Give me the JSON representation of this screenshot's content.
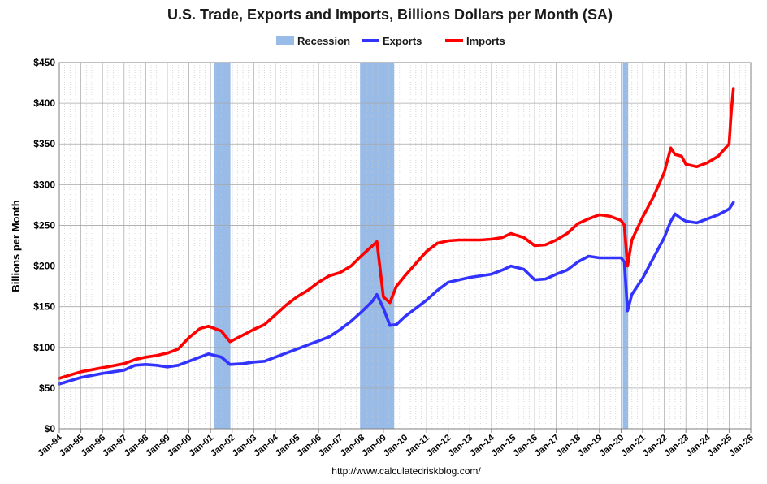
{
  "chart_data": {
    "type": "line",
    "title": "U.S. Trade, Exports and Imports, Billions Dollars per Month (SA)",
    "ylabel": "Billions per Month",
    "xlabel": "",
    "source_url": "http://www.calculatedriskblog.com/",
    "ylim": [
      0,
      450
    ],
    "xlim": [
      "1994-01",
      "2026-01"
    ],
    "grid": true,
    "legend_position": "top-center",
    "y_tick_labels": [
      "$0",
      "$50",
      "$100",
      "$150",
      "$200",
      "$250",
      "$300",
      "$350",
      "$400",
      "$450"
    ],
    "y_tick_values": [
      0,
      50,
      100,
      150,
      200,
      250,
      300,
      350,
      400,
      450
    ],
    "x_tick_labels": [
      "Jan-94",
      "Jan-95",
      "Jan-96",
      "Jan-97",
      "Jan-98",
      "Jan-99",
      "Jan-00",
      "Jan-01",
      "Jan-02",
      "Jan-03",
      "Jan-04",
      "Jan-05",
      "Jan-06",
      "Jan-07",
      "Jan-08",
      "Jan-09",
      "Jan-10",
      "Jan-11",
      "Jan-12",
      "Jan-13",
      "Jan-14",
      "Jan-15",
      "Jan-16",
      "Jan-17",
      "Jan-18",
      "Jan-19",
      "Jan-20",
      "Jan-21",
      "Jan-22",
      "Jan-23",
      "Jan-24",
      "Jan-25",
      "Jan-26"
    ],
    "x_tick_values": [
      1994,
      1995,
      1996,
      1997,
      1998,
      1999,
      2000,
      2001,
      2002,
      2003,
      2004,
      2005,
      2006,
      2007,
      2008,
      2009,
      2010,
      2011,
      2012,
      2013,
      2014,
      2015,
      2016,
      2017,
      2018,
      2019,
      2020,
      2021,
      2022,
      2023,
      2024,
      2025,
      2026
    ],
    "legend": [
      {
        "name": "Recession",
        "color": "#99bbe8",
        "kind": "band"
      },
      {
        "name": "Exports",
        "color": "#3333ff",
        "kind": "line"
      },
      {
        "name": "Imports",
        "color": "#ff0000",
        "kind": "line"
      }
    ],
    "recessions": [
      {
        "start": "2001-03",
        "end": "2001-11",
        "start_num": 2001.17,
        "end_num": 2001.92
      },
      {
        "start": "2007-12",
        "end": "2009-06",
        "start_num": 2007.92,
        "end_num": 2009.5
      },
      {
        "start": "2020-02",
        "end": "2020-04",
        "start_num": 2020.08,
        "end_num": 2020.33
      }
    ],
    "series": [
      {
        "name": "Exports",
        "color": "#3333ff",
        "x": [
          1994.0,
          1995.0,
          1996.0,
          1997.0,
          1997.5,
          1998.0,
          1998.5,
          1999.0,
          1999.5,
          2000.0,
          2000.5,
          2000.9,
          2001.5,
          2001.9,
          2002.5,
          2003.0,
          2003.5,
          2004.0,
          2004.5,
          2005.0,
          2005.5,
          2006.0,
          2006.5,
          2007.0,
          2007.5,
          2008.0,
          2008.5,
          2008.7,
          2009.0,
          2009.3,
          2009.6,
          2010.0,
          2010.5,
          2011.0,
          2011.5,
          2012.0,
          2012.5,
          2013.0,
          2013.5,
          2014.0,
          2014.5,
          2014.9,
          2015.5,
          2016.0,
          2016.5,
          2017.0,
          2017.5,
          2018.0,
          2018.5,
          2019.0,
          2019.5,
          2020.0,
          2020.15,
          2020.3,
          2020.5,
          2021.0,
          2021.5,
          2022.0,
          2022.3,
          2022.5,
          2022.8,
          2023.0,
          2023.5,
          2024.0,
          2024.5,
          2025.0,
          2025.2
        ],
        "y": [
          55,
          63,
          68,
          72,
          78,
          79,
          78,
          76,
          78,
          83,
          88,
          92,
          88,
          79,
          80,
          82,
          83,
          88,
          93,
          98,
          103,
          108,
          113,
          122,
          132,
          144,
          157,
          165,
          148,
          127,
          128,
          138,
          148,
          158,
          170,
          180,
          183,
          186,
          188,
          190,
          195,
          200,
          196,
          183,
          184,
          190,
          195,
          205,
          212,
          210,
          210,
          210,
          205,
          145,
          165,
          185,
          210,
          235,
          255,
          264,
          258,
          255,
          253,
          258,
          263,
          270,
          278
        ]
      },
      {
        "name": "Imports",
        "color": "#ff0000",
        "x": [
          1994.0,
          1995.0,
          1996.0,
          1997.0,
          1997.5,
          1998.0,
          1998.5,
          1999.0,
          1999.5,
          2000.0,
          2000.5,
          2000.9,
          2001.5,
          2001.9,
          2002.5,
          2003.0,
          2003.5,
          2004.0,
          2004.5,
          2005.0,
          2005.5,
          2006.0,
          2006.5,
          2007.0,
          2007.5,
          2008.0,
          2008.5,
          2008.7,
          2009.0,
          2009.3,
          2009.6,
          2010.0,
          2010.5,
          2011.0,
          2011.5,
          2012.0,
          2012.5,
          2013.0,
          2013.5,
          2014.0,
          2014.5,
          2014.9,
          2015.5,
          2016.0,
          2016.5,
          2017.0,
          2017.5,
          2018.0,
          2018.5,
          2019.0,
          2019.5,
          2020.0,
          2020.15,
          2020.3,
          2020.5,
          2021.0,
          2021.5,
          2022.0,
          2022.3,
          2022.5,
          2022.8,
          2023.0,
          2023.5,
          2024.0,
          2024.5,
          2025.0,
          2025.1,
          2025.2
        ],
        "y": [
          62,
          70,
          75,
          80,
          85,
          88,
          90,
          93,
          98,
          112,
          123,
          126,
          120,
          107,
          115,
          122,
          128,
          140,
          152,
          162,
          170,
          180,
          188,
          192,
          200,
          213,
          225,
          230,
          162,
          155,
          175,
          188,
          203,
          218,
          228,
          231,
          232,
          232,
          232,
          233,
          235,
          240,
          235,
          225,
          226,
          232,
          240,
          252,
          258,
          263,
          261,
          256,
          250,
          200,
          232,
          260,
          285,
          315,
          345,
          337,
          335,
          325,
          322,
          327,
          335,
          350,
          390,
          418
        ]
      }
    ]
  }
}
